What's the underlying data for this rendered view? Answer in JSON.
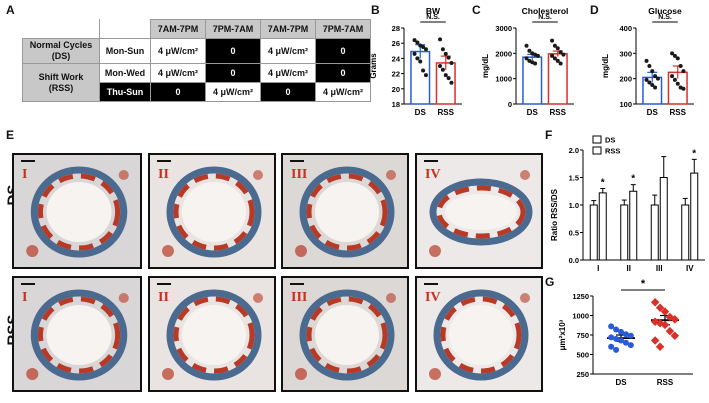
{
  "panels": {
    "a": "A",
    "b": "B",
    "c": "C",
    "d": "D",
    "e": "E",
    "f": "F",
    "g": "G"
  },
  "schedule": {
    "headers": [
      "7AM-7PM",
      "7PM-7AM",
      "7AM-7PM",
      "7PM-7AM"
    ],
    "rows": [
      {
        "group": "Normal Cycles (DS)",
        "days": "Mon-Sun",
        "cells": [
          "4 μW/cm²",
          "0",
          "4 μW/cm²",
          "0"
        ]
      },
      {
        "group": "Shift Work (RSS)",
        "days": "Mon-Wed",
        "cells": [
          "4 μW/cm²",
          "0",
          "4 μW/cm²",
          "0"
        ]
      },
      {
        "group": "",
        "days": "Thu-Sun",
        "cells": [
          "0",
          "4 μW/cm²",
          "0",
          "4 μW/cm²"
        ]
      }
    ]
  },
  "micro": {
    "row_labels": [
      "DS",
      "RSS"
    ],
    "sections": [
      "I",
      "II",
      "III",
      "IV"
    ]
  },
  "chart_data": [
    {
      "id": "B",
      "type": "scatter",
      "title": "BW",
      "ylabel": "Grams",
      "ylim": [
        18,
        28
      ],
      "yticks": [
        18,
        20,
        22,
        24,
        26,
        28
      ],
      "categories": [
        "DS",
        "RSS"
      ],
      "means": [
        24.9,
        23.4
      ],
      "sem": [
        0.9,
        0.9
      ],
      "sig": "N.S.",
      "points": [
        [
          26.4,
          26.1,
          25.7,
          25.5,
          25.2,
          24.6,
          24.0,
          23.6,
          22.4,
          21.8
        ],
        [
          26.5,
          25.2,
          24.6,
          24.1,
          23.4,
          23.0,
          22.5,
          21.8,
          21.4,
          20.8
        ]
      ]
    },
    {
      "id": "C",
      "type": "scatter",
      "title": "Cholesterol",
      "ylabel": "mg/dL",
      "ylim": [
        0,
        3000
      ],
      "yticks": [
        0,
        1000,
        2000,
        3000
      ],
      "categories": [
        "DS",
        "RSS"
      ],
      "means": [
        1850,
        1980
      ],
      "sem": [
        110,
        110
      ],
      "sig": "N.S.",
      "points": [
        [
          2300,
          2100,
          2000,
          1950,
          1900,
          1800,
          1700,
          1650,
          1600
        ],
        [
          2500,
          2300,
          2200,
          2050,
          1950,
          1900,
          1800,
          1700,
          1600
        ]
      ]
    },
    {
      "id": "D",
      "type": "scatter",
      "title": "Glucose",
      "ylabel": "mg/dL",
      "ylim": [
        100,
        400
      ],
      "yticks": [
        100,
        200,
        300,
        400
      ],
      "categories": [
        "DS",
        "RSS"
      ],
      "means": [
        205,
        225
      ],
      "sem": [
        20,
        25
      ],
      "sig": "N.S.",
      "points": [
        [
          270,
          250,
          230,
          210,
          200,
          195,
          185,
          175,
          165
        ],
        [
          300,
          290,
          280,
          250,
          230,
          210,
          195,
          180,
          165,
          160
        ]
      ]
    },
    {
      "id": "F",
      "type": "bar",
      "ylabel": "Ratio  RSS/DS",
      "ylim": [
        0,
        2.0
      ],
      "yticks": [
        0,
        0.5,
        1.0,
        1.5,
        2.0
      ],
      "categories": [
        "I",
        "II",
        "III",
        "IV"
      ],
      "series": [
        {
          "name": "DS",
          "values": [
            1.0,
            1.0,
            1.0,
            1.0
          ],
          "err": [
            0.08,
            0.09,
            0.18,
            0.12
          ]
        },
        {
          "name": "RSS",
          "values": [
            1.22,
            1.25,
            1.5,
            1.58
          ],
          "err": [
            0.08,
            0.12,
            0.38,
            0.25
          ]
        }
      ],
      "sig": [
        "*",
        "*",
        "",
        "*"
      ]
    },
    {
      "id": "G",
      "type": "scatter",
      "ylabel": "μm²x10³",
      "ylim": [
        250,
        1250
      ],
      "yticks": [
        250,
        500,
        750,
        1000,
        1250
      ],
      "categories": [
        "DS",
        "RSS"
      ],
      "means": [
        710,
        940
      ],
      "sem": [
        40,
        60
      ],
      "sig": "*",
      "points": [
        [
          860,
          820,
          790,
          760,
          740,
          720,
          700,
          680,
          650,
          620,
          600,
          560
        ],
        [
          1170,
          1100,
          1050,
          980,
          950,
          920,
          900,
          880,
          800,
          740,
          680,
          600
        ]
      ]
    }
  ],
  "colors": {
    "ds": "#2a5bd7",
    "rss": "#d9302a",
    "dot": "#1a1a1a"
  }
}
